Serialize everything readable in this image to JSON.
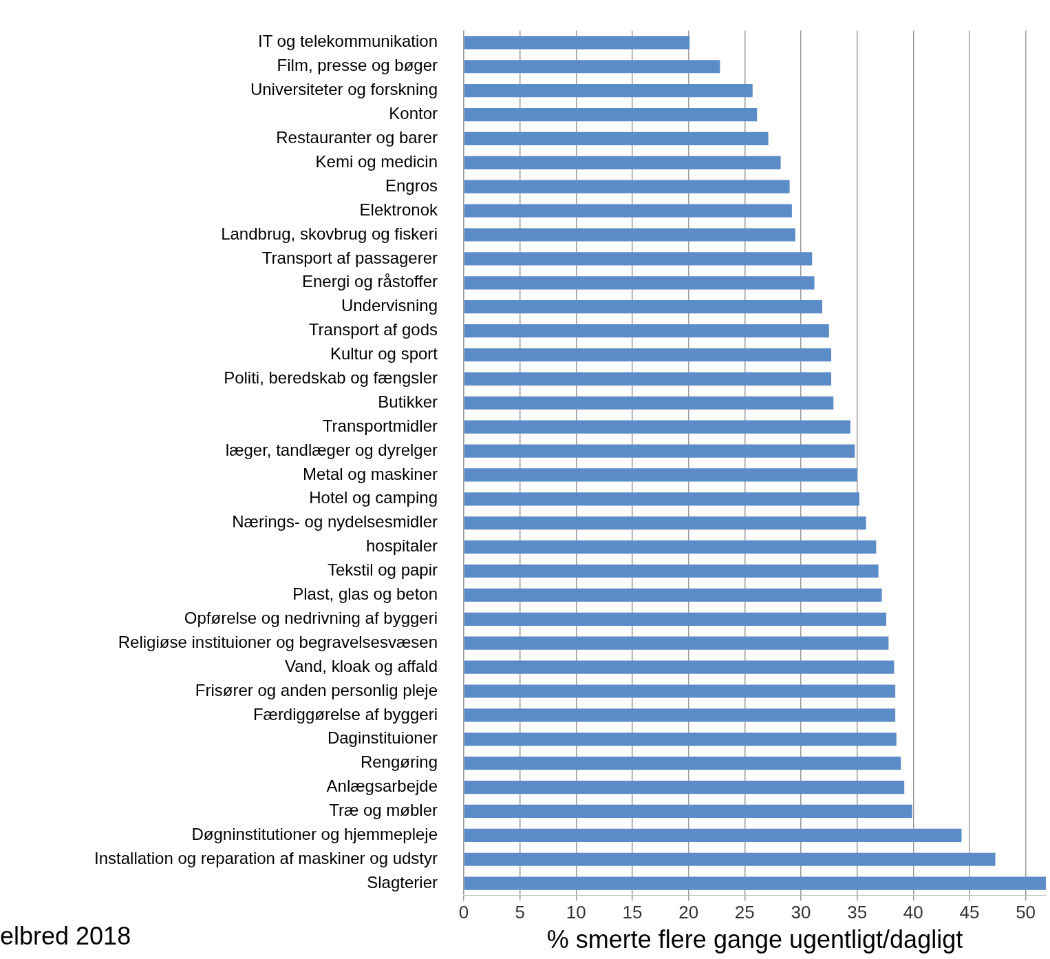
{
  "chart_data": {
    "type": "bar",
    "orientation": "horizontal",
    "categories": [
      "IT og telekommunikation",
      "Film, presse og bøger",
      "Universiteter og forskning",
      "Kontor",
      "Restauranter og barer",
      "Kemi og medicin",
      "Engros",
      "Elektronok",
      "Landbrug, skovbrug og fiskeri",
      "Transport af passagerer",
      "Energi og råstoffer",
      "Undervisning",
      "Transport af gods",
      "Kultur og sport",
      "Politi, beredskab og fængsler",
      "Butikker",
      "Transportmidler",
      "læger, tandlæger og dyrelger",
      "Metal og maskiner",
      "Hotel og camping",
      "Nærings- og nydelsesmidler",
      "hospitaler",
      "Tekstil og papir",
      "Plast, glas og beton",
      "Opførelse og nedrivning af byggeri",
      "Religiøse instituioner og begravelsesvæsen",
      "Vand, kloak og affald",
      "Frisører og anden personlig pleje",
      "Færdiggørelse af byggeri",
      "Daginstituioner",
      "Rengøring",
      "Anlægsarbejde",
      "Træ og møbler",
      "Døgninstitutioner og hjemmepleje",
      "Installation og reparation af maskiner og udstyr",
      "Slagterier"
    ],
    "values": [
      20.1,
      22.8,
      25.7,
      26.1,
      27.1,
      28.2,
      29.0,
      29.2,
      29.5,
      31.0,
      31.2,
      31.9,
      32.5,
      32.7,
      32.7,
      32.9,
      34.4,
      34.8,
      35.0,
      35.2,
      35.8,
      36.7,
      36.9,
      37.2,
      37.6,
      37.8,
      38.3,
      38.4,
      38.4,
      38.5,
      38.9,
      39.2,
      39.9,
      44.3,
      47.3,
      51.8
    ],
    "color": "#5b8cc8",
    "xlabel": "% smerte flere gange ugentligt/dagligt",
    "xlim": [
      0,
      51.8
    ],
    "xticks": [
      0,
      5,
      10,
      15,
      20,
      25,
      30,
      35,
      40,
      45,
      50
    ],
    "grid": "x",
    "annotations": [
      "elbred 2018"
    ]
  }
}
